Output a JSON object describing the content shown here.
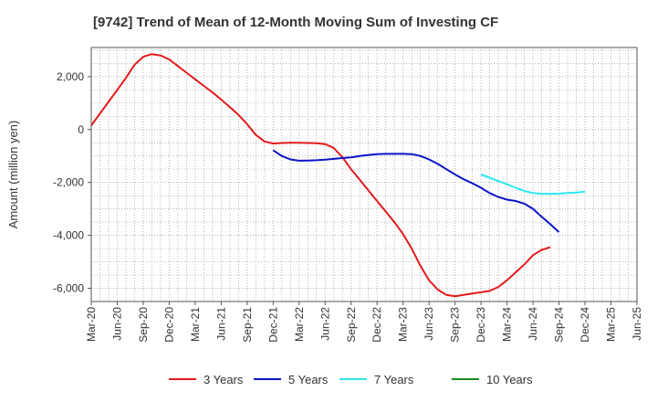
{
  "chart_data": {
    "type": "line",
    "title": "[9742]  Trend of Mean of 12-Month Moving Sum of Investing CF",
    "xlabel": "",
    "ylabel": "Amount (million yen)",
    "ylim": [
      -6500,
      3100
    ],
    "yticks": [
      2000,
      0,
      -2000,
      -4000,
      -6000
    ],
    "ytick_labels": [
      "2,000",
      "0",
      "-2,000",
      "-4,000",
      "-6,000"
    ],
    "x_start": "Mar-20",
    "x_tick_labels": [
      "Mar-20",
      "Jun-20",
      "Sep-20",
      "Dec-20",
      "Mar-21",
      "Jun-21",
      "Sep-21",
      "Dec-21",
      "Mar-22",
      "Jun-22",
      "Sep-22",
      "Dec-22",
      "Mar-23",
      "Jun-23",
      "Sep-23",
      "Dec-23",
      "Mar-24",
      "Jun-24",
      "Sep-24",
      "Dec-24",
      "Mar-25",
      "Jun-25"
    ],
    "grid": true,
    "legend_position": "bottom",
    "series": [
      {
        "name": "3 Years",
        "color": "#e31a1c",
        "start_index": 0,
        "values": [
          150,
          600,
          1050,
          1500,
          1950,
          2450,
          2750,
          2850,
          2800,
          2650,
          2400,
          2150,
          1900,
          1650,
          1400,
          1130,
          850,
          550,
          200,
          -200,
          -450,
          -530,
          -510,
          -500,
          -500,
          -510,
          -520,
          -550,
          -700,
          -1050,
          -1500,
          -1900,
          -2300,
          -2700,
          -3100,
          -3500,
          -3950,
          -4500,
          -5150,
          -5700,
          -6050,
          -6250,
          -6300,
          -6250,
          -6200,
          -6150,
          -6100,
          -5950,
          -5700,
          -5400,
          -5100,
          -4750,
          -4550,
          -4450
        ]
      },
      {
        "name": "5 Years",
        "color": "#0a14c8",
        "start_index": 21,
        "values": [
          -780,
          -1000,
          -1130,
          -1180,
          -1170,
          -1160,
          -1140,
          -1110,
          -1080,
          -1050,
          -1000,
          -960,
          -930,
          -920,
          -920,
          -920,
          -930,
          -1000,
          -1130,
          -1300,
          -1500,
          -1700,
          -1880,
          -2030,
          -2200,
          -2400,
          -2550,
          -2650,
          -2700,
          -2800,
          -3000,
          -3300,
          -3580,
          -3880
        ]
      },
      {
        "name": "7 Years",
        "color": "#2ee6f0",
        "start_index": 45,
        "values": [
          -1700,
          -1820,
          -1950,
          -2070,
          -2200,
          -2320,
          -2400,
          -2430,
          -2430,
          -2420,
          -2400,
          -2380,
          -2350
        ]
      },
      {
        "name": "10 Years",
        "color": "#1e8c1e",
        "start_index": 0,
        "values": []
      }
    ]
  }
}
